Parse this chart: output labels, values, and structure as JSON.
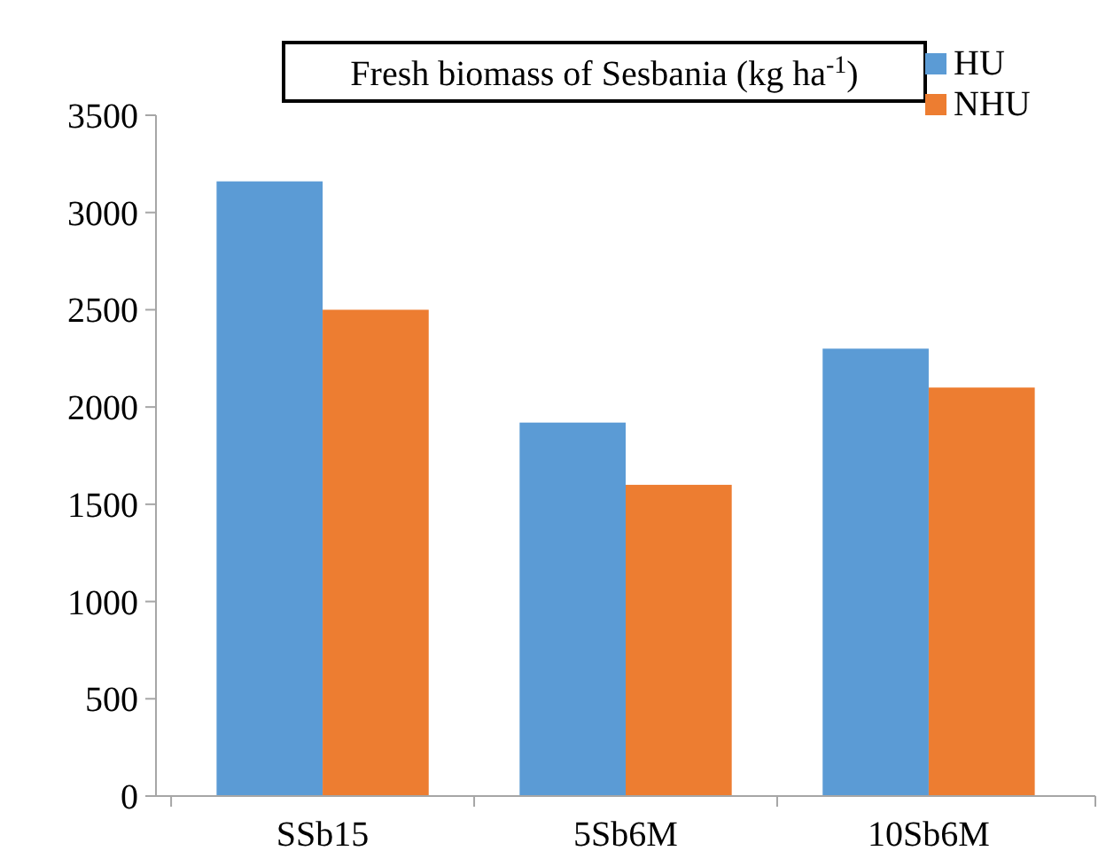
{
  "chart_data": {
    "type": "bar",
    "title": "Fresh biomass of Sesbania (kg ha$^{-1}$)",
    "categories": [
      "SSb15",
      "5Sb6M",
      "10Sb6M"
    ],
    "series": [
      {
        "name": "HU",
        "color": "#5b9bd5",
        "values": [
          3160,
          1920,
          2300
        ]
      },
      {
        "name": "NHU",
        "color": "#ed7d31",
        "values": [
          2500,
          1600,
          2100
        ]
      }
    ],
    "ylim": [
      0,
      3500
    ],
    "yticks": [
      0,
      500,
      1000,
      1500,
      2000,
      2500,
      3000,
      3500
    ],
    "grid": false,
    "legend": "top right"
  }
}
